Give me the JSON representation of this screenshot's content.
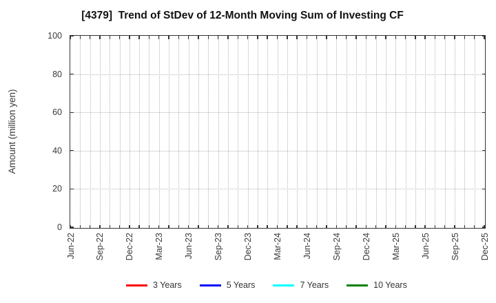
{
  "chart_data": {
    "type": "line",
    "title": "[4379]  Trend of StDev of 12-Month Moving Sum of Investing CF",
    "xlabel": "",
    "ylabel": "Amount (million yen)",
    "ylim": [
      0,
      100
    ],
    "yticks": [
      0,
      20,
      40,
      60,
      80,
      100
    ],
    "xtick_labels": [
      "Jun-22",
      "Sep-22",
      "Dec-22",
      "Mar-23",
      "Jun-23",
      "Sep-23",
      "Dec-23",
      "Mar-24",
      "Jun-24",
      "Sep-24",
      "Dec-24",
      "Mar-25",
      "Jun-25",
      "Sep-25",
      "Dec-25"
    ],
    "x_minor_per_major": 3,
    "grid": true,
    "legend_position": "bottom",
    "series": [
      {
        "name": "3 Years",
        "color": "#ff0000",
        "values": []
      },
      {
        "name": "5 Years",
        "color": "#0000ff",
        "values": []
      },
      {
        "name": "7 Years",
        "color": "#00ffff",
        "values": []
      },
      {
        "name": "10 Years",
        "color": "#008000",
        "values": []
      }
    ]
  },
  "colors": {
    "grid": "#b4b4b4",
    "axis": "#333333",
    "tick_text": "#3a3a3a",
    "title_text": "#111111",
    "background": "#ffffff"
  }
}
